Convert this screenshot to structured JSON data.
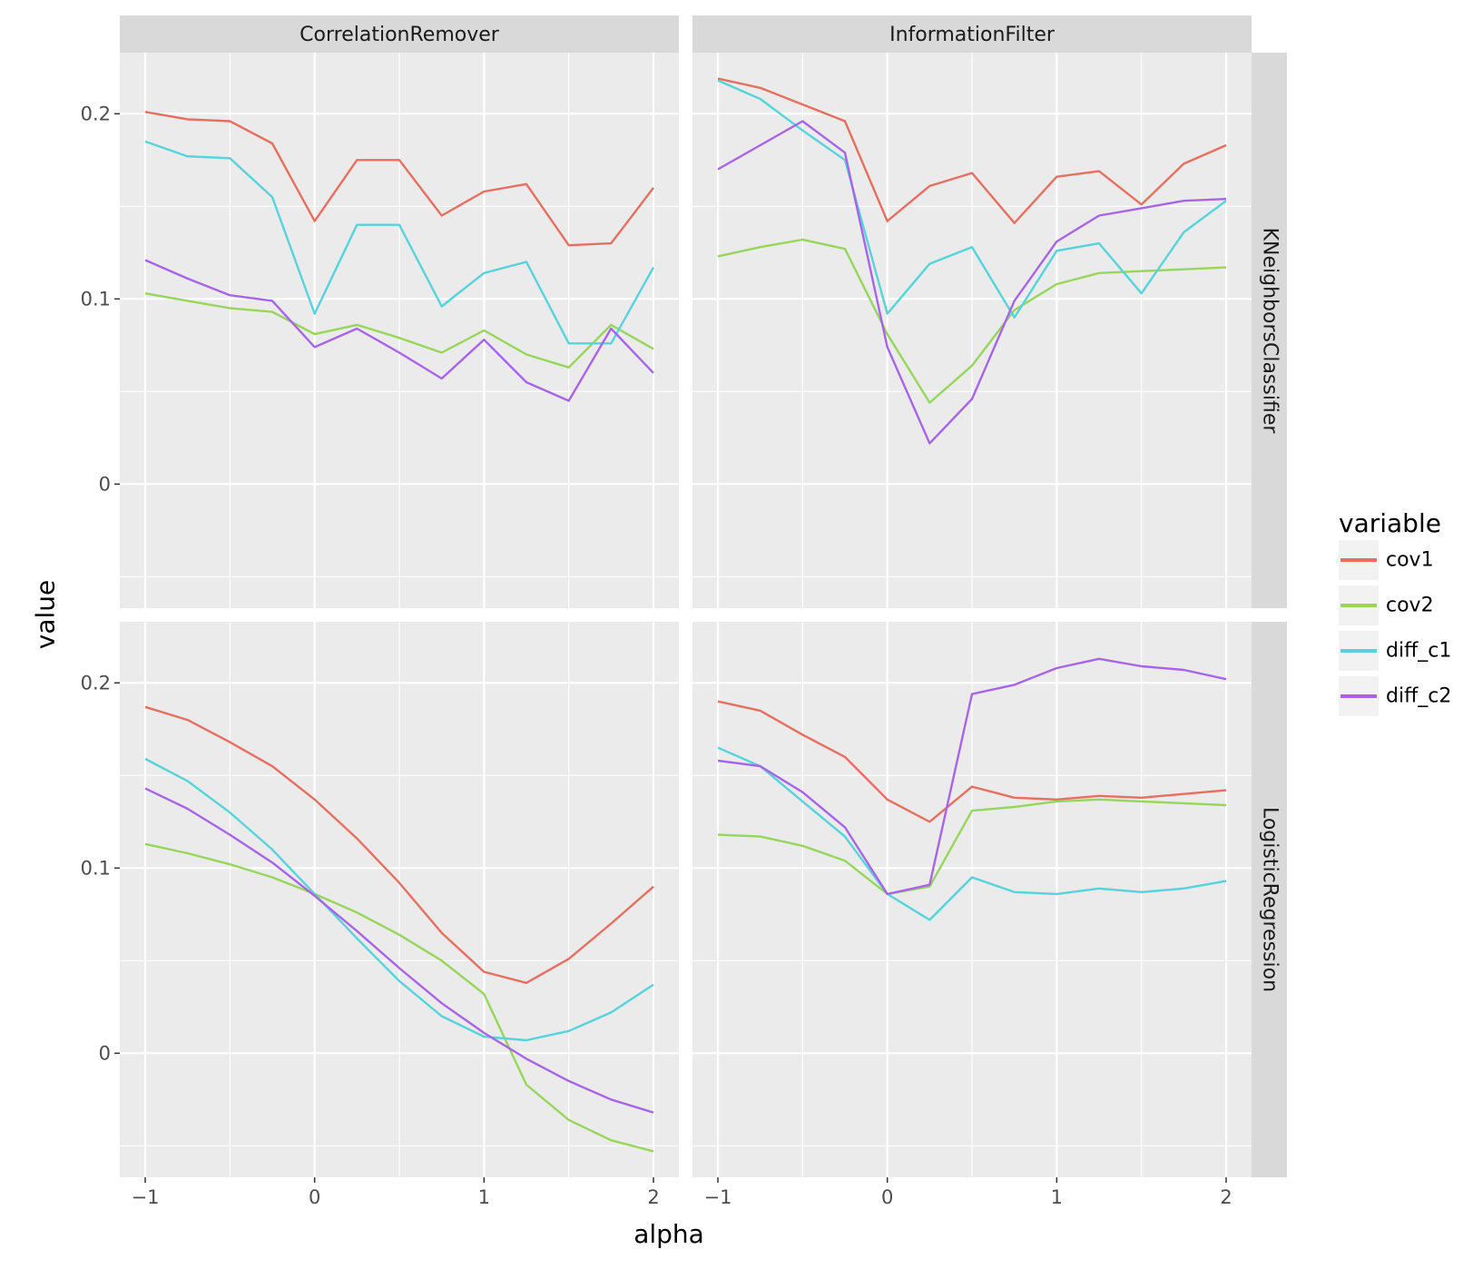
{
  "chart_data": {
    "type": "line",
    "facet_columns": [
      "CorrelationRemover",
      "InformationFilter"
    ],
    "facet_rows": [
      "KNeighborsClassifier",
      "LogisticRegression"
    ],
    "xlabel": "alpha",
    "ylabel": "value",
    "x": [
      -1,
      -0.75,
      -0.5,
      -0.25,
      0,
      0.25,
      0.5,
      0.75,
      1,
      1.25,
      1.5,
      1.75,
      2
    ],
    "xticks": [
      -1,
      0,
      1,
      2
    ],
    "xtick_labels": [
      "−1",
      "0",
      "1",
      "2"
    ],
    "xlim": [
      -1.15,
      2.15
    ],
    "yticks": [
      0,
      0.1,
      0.2
    ],
    "ytick_labels": [
      "0",
      "0.1",
      "0.2"
    ],
    "ylim": [
      -0.067,
      0.233
    ],
    "legend": {
      "title": "variable",
      "position": "right",
      "entries": [
        {
          "name": "cov1",
          "color": "#E76F5F"
        },
        {
          "name": "cov2",
          "color": "#96D65A"
        },
        {
          "name": "diff_c1",
          "color": "#56D3DB"
        },
        {
          "name": "diff_c2",
          "color": "#A864E8"
        }
      ]
    },
    "panels": [
      {
        "column": "CorrelationRemover",
        "row": "KNeighborsClassifier",
        "series": [
          {
            "name": "cov1",
            "values": [
              0.201,
              0.197,
              0.196,
              0.184,
              0.142,
              0.175,
              0.175,
              0.145,
              0.158,
              0.162,
              0.129,
              0.13,
              0.16
            ]
          },
          {
            "name": "cov2",
            "values": [
              0.103,
              0.099,
              0.095,
              0.093,
              0.081,
              0.086,
              0.079,
              0.071,
              0.083,
              0.07,
              0.063,
              0.086,
              0.073
            ]
          },
          {
            "name": "diff_c1",
            "values": [
              0.185,
              0.177,
              0.176,
              0.155,
              0.092,
              0.14,
              0.14,
              0.096,
              0.114,
              0.12,
              0.076,
              0.076,
              0.117
            ]
          },
          {
            "name": "diff_c2",
            "values": [
              0.121,
              0.111,
              0.102,
              0.099,
              0.074,
              0.084,
              0.071,
              0.057,
              0.078,
              0.055,
              0.045,
              0.084,
              0.06
            ]
          }
        ]
      },
      {
        "column": "InformationFilter",
        "row": "KNeighborsClassifier",
        "series": [
          {
            "name": "cov1",
            "values": [
              0.219,
              0.214,
              0.205,
              0.196,
              0.142,
              0.161,
              0.168,
              0.141,
              0.166,
              0.169,
              0.151,
              0.173,
              0.183
            ]
          },
          {
            "name": "cov2",
            "values": [
              0.123,
              0.128,
              0.132,
              0.127,
              0.081,
              0.044,
              0.064,
              0.094,
              0.108,
              0.114,
              0.115,
              0.116,
              0.117
            ]
          },
          {
            "name": "diff_c1",
            "values": [
              0.218,
              0.208,
              0.191,
              0.175,
              0.092,
              0.119,
              0.128,
              0.09,
              0.126,
              0.13,
              0.103,
              0.136,
              0.153
            ]
          },
          {
            "name": "diff_c2",
            "values": [
              0.17,
              0.183,
              0.196,
              0.179,
              0.074,
              0.022,
              0.046,
              0.099,
              0.131,
              0.145,
              0.149,
              0.153,
              0.154
            ]
          }
        ]
      },
      {
        "column": "CorrelationRemover",
        "row": "LogisticRegression",
        "series": [
          {
            "name": "cov1",
            "values": [
              0.187,
              0.18,
              0.168,
              0.155,
              0.137,
              0.116,
              0.092,
              0.065,
              0.044,
              0.038,
              0.051,
              0.07,
              0.09
            ]
          },
          {
            "name": "cov2",
            "values": [
              0.113,
              0.108,
              0.102,
              0.095,
              0.086,
              0.076,
              0.064,
              0.05,
              0.032,
              -0.017,
              -0.036,
              -0.047,
              -0.053
            ]
          },
          {
            "name": "diff_c1",
            "values": [
              0.159,
              0.147,
              0.13,
              0.11,
              0.086,
              0.062,
              0.039,
              0.02,
              0.009,
              0.007,
              0.012,
              0.022,
              0.037
            ]
          },
          {
            "name": "diff_c2",
            "values": [
              0.143,
              0.132,
              0.118,
              0.103,
              0.085,
              0.066,
              0.046,
              0.027,
              0.011,
              -0.003,
              -0.015,
              -0.025,
              -0.032
            ]
          }
        ]
      },
      {
        "column": "InformationFilter",
        "row": "LogisticRegression",
        "series": [
          {
            "name": "cov1",
            "values": [
              0.19,
              0.185,
              0.172,
              0.16,
              0.137,
              0.125,
              0.144,
              0.138,
              0.137,
              0.139,
              0.138,
              0.14,
              0.142
            ]
          },
          {
            "name": "cov2",
            "values": [
              0.118,
              0.117,
              0.112,
              0.104,
              0.086,
              0.09,
              0.131,
              0.133,
              0.136,
              0.137,
              0.136,
              0.135,
              0.134
            ]
          },
          {
            "name": "diff_c1",
            "values": [
              0.165,
              0.155,
              0.136,
              0.117,
              0.086,
              0.072,
              0.095,
              0.087,
              0.086,
              0.089,
              0.087,
              0.089,
              0.093
            ]
          },
          {
            "name": "diff_c2",
            "values": [
              0.158,
              0.155,
              0.141,
              0.122,
              0.086,
              0.091,
              0.194,
              0.199,
              0.208,
              0.213,
              0.209,
              0.207,
              0.202
            ]
          }
        ]
      }
    ]
  }
}
